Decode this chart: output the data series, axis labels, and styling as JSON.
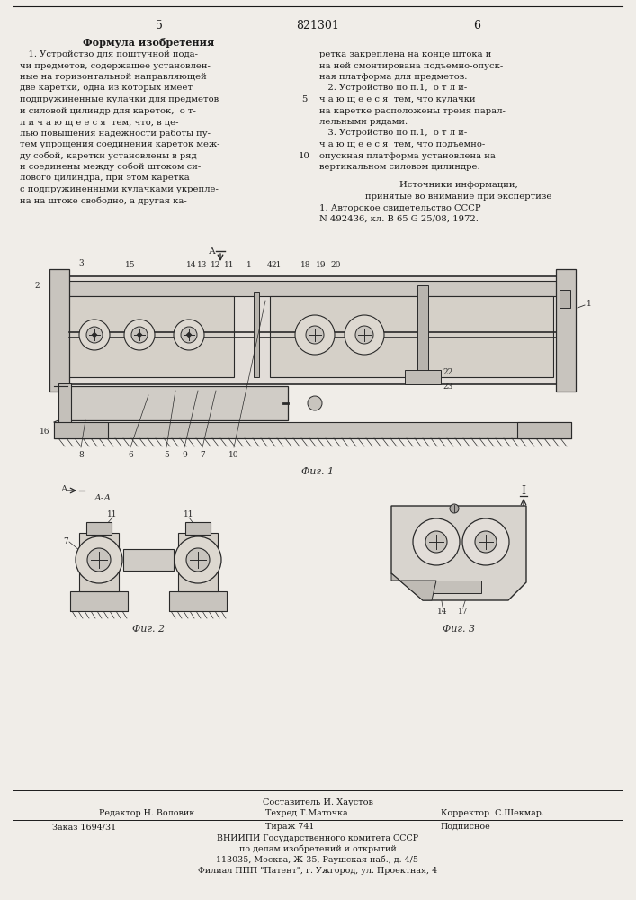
{
  "page_numbers_left": "5",
  "page_numbers_center": "821301",
  "page_numbers_right": "6",
  "bg_color": "#f0ede8",
  "text_color": "#1a1a1a",
  "draw_color": "#2a2a2a",
  "left_column_title": "Формула изобретения",
  "left_column_text": [
    "   1. Устройство для поштучной пода-",
    "чи предметов, содержащее установлен-",
    "ные на горизонтальной направляющей",
    "две каретки, одна из которых имеет",
    "подпружиненные кулачки для предметов",
    "и силовой цилиндр для кареток,  о т-",
    "л и ч а ю щ е е с я  тем, что, в це-",
    "лью повышения надежности работы пу-",
    "тем упрощения соединения кареток меж-",
    "ду собой, каретки установлены в ряд",
    "и соединены между собой штоком си-",
    "лового цилиндра, при этом каретка",
    "с подпружиненными кулачками укрепле-",
    "на на штоке свободно, а другая ка-"
  ],
  "right_column_text": [
    "ретка закреплена на конце штока и",
    "на ней смонтирована подъемно-опуск-",
    "ная платформа для предметов.",
    "   2. Устройство по п.1,  о т л и-",
    "ч а ю щ е е с я  тем, что кулачки",
    "на каретке расположены тремя парал-",
    "лельными рядами.",
    "   3. Устройство по п.1,  о т л и-",
    "ч а ю щ е е с я  тем, что подъемно-",
    "опускная платформа установлена на",
    "вертикальном силовом цилиндре."
  ],
  "sources_title": "Источники информации,",
  "sources_subtitle": "принятые во внимание при экспертизе",
  "sources_line1": "1. Авторское свидетельство СССР",
  "sources_line2": "N 492436, кл. B 65 G 25/08, 1972.",
  "fig1_caption": "Фиг. 1",
  "fig2_caption": "Фиг. 2",
  "fig3_caption": "Фиг. 3",
  "footer_composer": "Составитель И. Хаустов",
  "footer_editor": "Редактор Н. Воловик",
  "footer_techred": "Техред Т.Маточка",
  "footer_corrector": "Корректор  С.Шекмар.",
  "footer_order": "Заказ 1694/31",
  "footer_circulation": "Тираж 741",
  "footer_subscription": "Подписное",
  "footer_vniippi": "ВНИИПИ Государственного комитета СССР",
  "footer_vniippi2": "по делам изобретений и открытий",
  "footer_address": "113035, Москва, Ж-35, Раушская наб., д. 4/5",
  "footer_branch": "Филиал ППП \"Патент\", г. Ужгород, ул. Проектная, 4"
}
